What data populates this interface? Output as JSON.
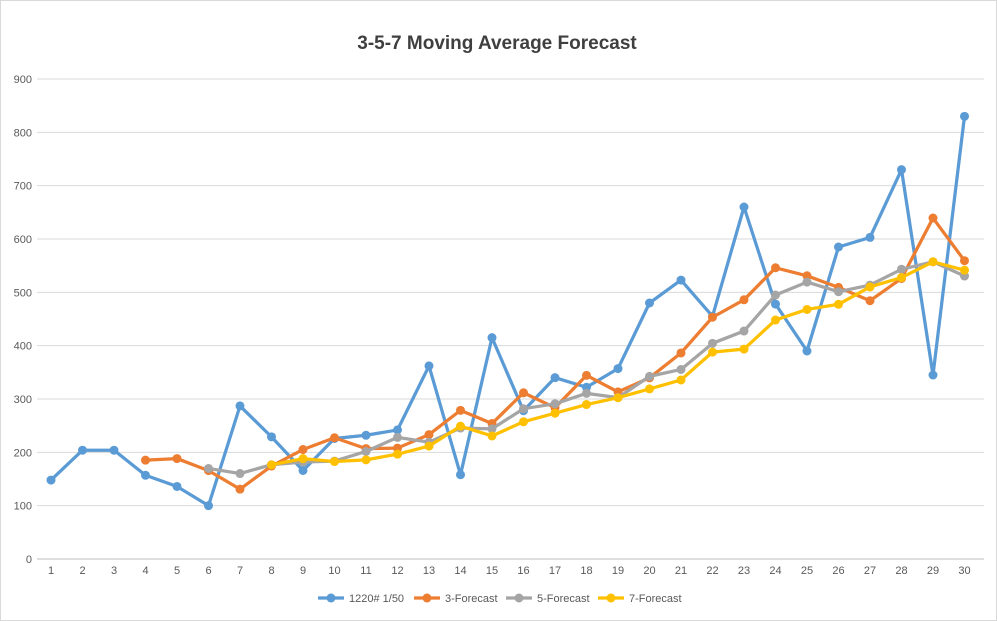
{
  "window": {
    "background": "#FFFFFF",
    "border_color": "#D9D9D9"
  },
  "chart_data": {
    "type": "line",
    "title": "3-5-7 Moving Average Forecast",
    "xlabel": "",
    "ylabel": "",
    "x_categories": [
      1,
      2,
      3,
      4,
      5,
      6,
      7,
      8,
      9,
      10,
      11,
      12,
      13,
      14,
      15,
      16,
      17,
      18,
      19,
      20,
      21,
      22,
      23,
      24,
      25,
      26,
      27,
      28,
      29,
      30
    ],
    "y_ticks": [
      0,
      100,
      200,
      300,
      400,
      500,
      600,
      700,
      800,
      900
    ],
    "ylim": [
      0,
      900
    ],
    "grid": "horizontal-only",
    "legend_position": "bottom-center",
    "marker_shape": "circle",
    "series": [
      {
        "name": "1220# 1/50",
        "color": "#5B9BD5",
        "values": [
          148,
          204,
          204,
          157,
          136,
          100,
          287,
          229,
          166,
          226,
          232,
          242,
          362,
          158,
          415,
          278,
          340,
          322,
          357,
          480,
          523,
          455,
          660,
          478,
          390,
          585,
          603,
          730,
          345,
          830
        ]
      },
      {
        "name": "3-Forecast",
        "color": "#ED7D31",
        "values": [
          null,
          null,
          null,
          185.3,
          188.3,
          165.7,
          131.0,
          174.3,
          205.3,
          227.3,
          207.0,
          208.0,
          233.3,
          278.7,
          254.0,
          311.7,
          283.7,
          344.3,
          313.3,
          339.7,
          386.3,
          453.3,
          486.0,
          546.0,
          531.0,
          509.3,
          484.3,
          526.0,
          639.3,
          559.3
        ]
      },
      {
        "name": "5-Forecast",
        "color": "#A5A5A5",
        "values": [
          null,
          null,
          null,
          null,
          null,
          169.8,
          160.2,
          176.8,
          181.8,
          183.6,
          201.6,
          228.0,
          219.0,
          245.6,
          244.0,
          281.8,
          291.0,
          310.6,
          302.6,
          342.4,
          355.4,
          404.4,
          427.4,
          495.0,
          519.2,
          501.2,
          513.6,
          543.2,
          557.2,
          530.6
        ]
      },
      {
        "name": "7-Forecast",
        "color": "#FFC000",
        "values": [
          null,
          null,
          null,
          null,
          null,
          null,
          null,
          176.6,
          188.1,
          182.7,
          185.9,
          196.6,
          211.7,
          249.1,
          230.7,
          257.3,
          273.3,
          289.6,
          302.4,
          318.9,
          335.7,
          387.9,
          393.6,
          448.1,
          467.9,
          477.6,
          510.1,
          527.7,
          557.3,
          541.6
        ]
      }
    ]
  },
  "style_colors": {
    "gridline": "#D9D9D9",
    "axis_line": "#BFBFBF",
    "tick_label": "#595959",
    "title_text": "#3F3F3F"
  }
}
